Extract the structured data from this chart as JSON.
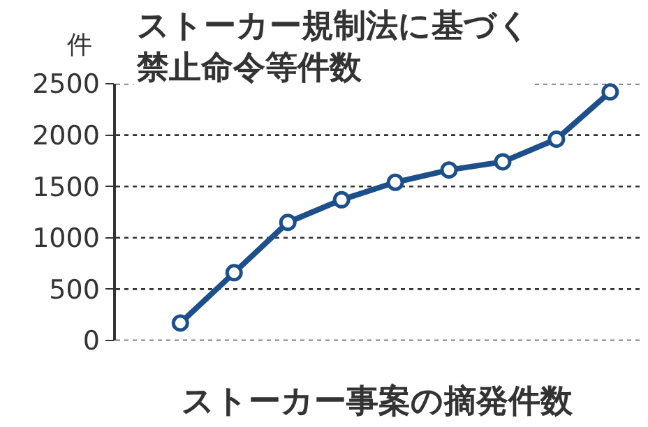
{
  "chart_data": {
    "type": "line",
    "title": "ストーカー規制法に基づく禁止命令等件数",
    "ylabel": "件",
    "categories": [
      null,
      null,
      null,
      null,
      null,
      null,
      null,
      null,
      null
    ],
    "series": [
      {
        "color": "#1d4f8a",
        "values": [
          170,
          660,
          1150,
          1370,
          1540,
          1660,
          1740,
          1960,
          2420
        ]
      }
    ],
    "ylim": [
      0,
      2500
    ],
    "yticks": [
      0,
      500,
      1000,
      1500,
      2000,
      2500
    ],
    "grid": "y",
    "marker": "circle",
    "line_style": "solid",
    "tick_labels": "y",
    "annotations": [
      "ストーカー事案の摘発件数"
    ]
  }
}
